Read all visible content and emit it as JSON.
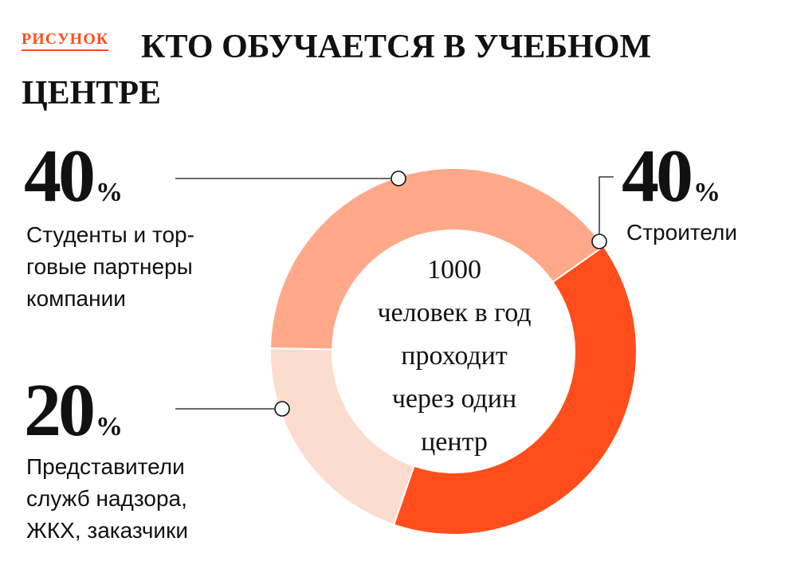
{
  "kicker": "РИСУНОК",
  "title": "КТО ОБУЧАЕТСЯ В УЧЕБНОМ ЦЕНТРЕ",
  "center": {
    "line1": "1000",
    "line2": "человек в год",
    "line3": "проходит",
    "line4": "через один",
    "line5": "центр"
  },
  "stats": {
    "builders": {
      "value": "40",
      "unit": "%",
      "label": "Строители"
    },
    "students": {
      "value": "40",
      "unit": "%",
      "label_lines": [
        "Студенты и тор-",
        "говые партнеры",
        "компании"
      ]
    },
    "supervisors": {
      "value": "20",
      "unit": "%",
      "label_lines": [
        "Представители",
        "служб надзора,",
        "ЖКХ, заказчики"
      ]
    }
  },
  "chart_data": {
    "type": "pie",
    "donut": true,
    "categories": [
      "Строители",
      "Представители служб надзора, ЖКХ, заказчики",
      "Студенты и торговые партнеры компании"
    ],
    "values": [
      40,
      20,
      40
    ],
    "colors": [
      "#ff4e1c",
      "#fddcd0",
      "#ffa88a"
    ],
    "unit": "%"
  }
}
